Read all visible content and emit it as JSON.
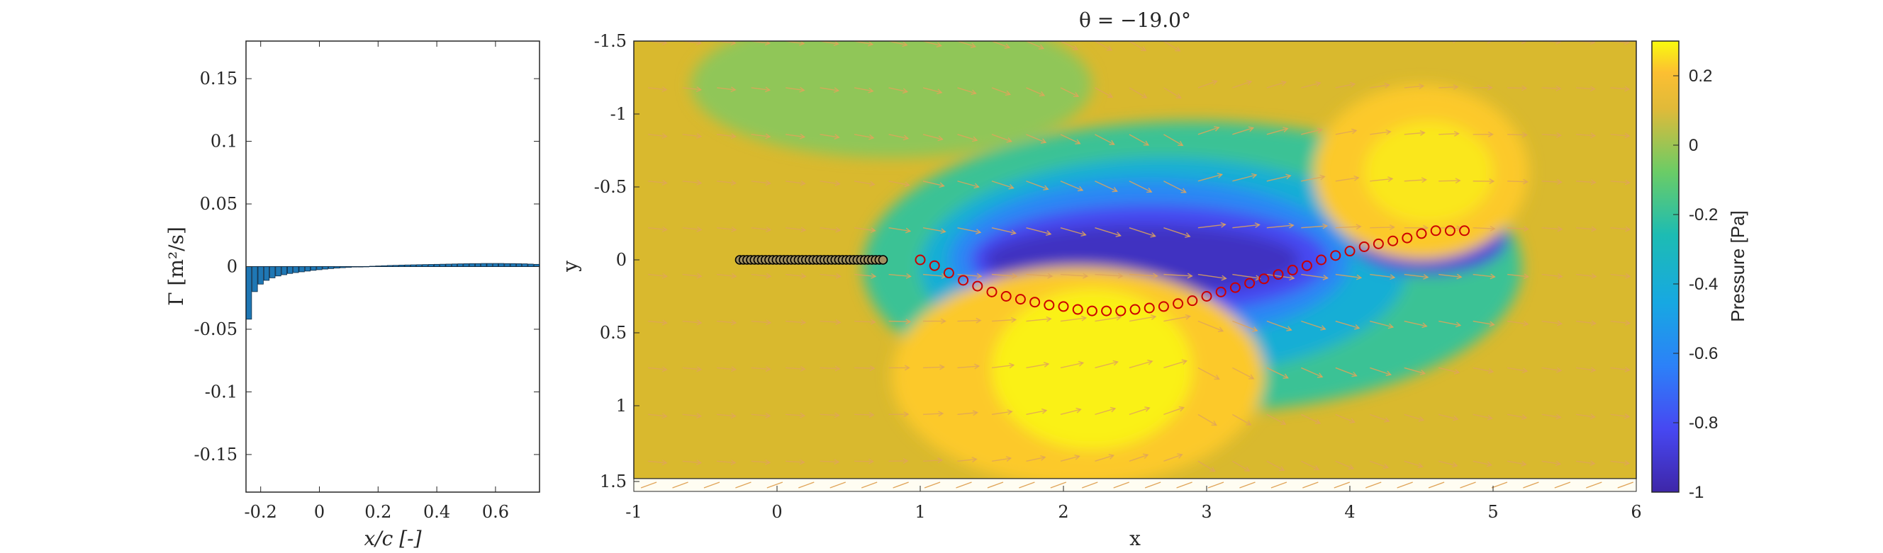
{
  "chart_data": [
    {
      "type": "bar",
      "xlabel": "x/c [-]",
      "ylabel": "Γ [m²/s]",
      "xlim": [
        -0.25,
        0.75
      ],
      "ylim": [
        -0.18,
        0.18
      ],
      "xticks": [
        "-0.2",
        "0",
        "0.2",
        "0.4",
        "0.6"
      ],
      "yticks": [
        "0.15",
        "0.1",
        "0.05",
        "0",
        "-0.05",
        "-0.1",
        "-0.15"
      ],
      "bar_color": "#1f77b4",
      "x": [
        -0.24,
        -0.22,
        -0.2,
        -0.18,
        -0.16,
        -0.14,
        -0.12,
        -0.1,
        -0.08,
        -0.06,
        -0.04,
        -0.02,
        0.0,
        0.02,
        0.04,
        0.06,
        0.08,
        0.1,
        0.12,
        0.14,
        0.16,
        0.18,
        0.2,
        0.22,
        0.24,
        0.26,
        0.28,
        0.3,
        0.32,
        0.34,
        0.36,
        0.38,
        0.4,
        0.42,
        0.44,
        0.46,
        0.48,
        0.5,
        0.52,
        0.54,
        0.56,
        0.58,
        0.6,
        0.62,
        0.64,
        0.66,
        0.68,
        0.7,
        0.72,
        0.74
      ],
      "values": [
        -0.042,
        -0.02,
        -0.014,
        -0.011,
        -0.009,
        -0.0075,
        -0.0065,
        -0.0055,
        -0.0048,
        -0.0042,
        -0.0036,
        -0.003,
        -0.0025,
        -0.002,
        -0.0016,
        -0.0012,
        -0.0009,
        -0.0006,
        -0.0003,
        -0.0001,
        0.0001,
        0.0003,
        0.0005,
        0.0007,
        0.0009,
        0.001,
        0.0012,
        0.0013,
        0.0014,
        0.0015,
        0.0016,
        0.0017,
        0.0018,
        0.0019,
        0.002,
        0.0021,
        0.0022,
        0.0023,
        0.0024,
        0.0024,
        0.0025,
        0.0025,
        0.0025,
        0.0025,
        0.0024,
        0.0024,
        0.0023,
        0.0022,
        0.002,
        0.0018
      ]
    },
    {
      "type": "heatmap",
      "title": "θ = −19.0°",
      "xlabel": "x",
      "ylabel": "y",
      "xlim": [
        -1,
        6
      ],
      "ylim": [
        -1.5,
        1.5
      ],
      "y_reversed": true,
      "xticks": [
        "-1",
        "0",
        "1",
        "2",
        "3",
        "4",
        "5",
        "6"
      ],
      "yticks": [
        "-1.5",
        "-1",
        "-0.5",
        "0",
        "0.5",
        "1",
        "1.5"
      ],
      "colorbar": {
        "label": "Pressure [Pa]",
        "range": [
          -1.0,
          0.3
        ],
        "ticks": [
          "0.2",
          "0",
          "-0.2",
          "-0.4",
          "-0.6",
          "-0.8",
          "-1"
        ],
        "colormap": "parula"
      },
      "pressure_regions": [
        {
          "shape": "ellipse",
          "center": [
            2.9,
            0.05
          ],
          "radii": [
            2.3,
            1.0
          ],
          "level": -0.25
        },
        {
          "shape": "ellipse",
          "center": [
            2.7,
            0.05
          ],
          "radii": [
            1.7,
            0.75
          ],
          "level": -0.45
        },
        {
          "shape": "ellipse",
          "center": [
            2.6,
            0.0
          ],
          "radii": [
            1.4,
            0.55
          ],
          "level": -0.65
        },
        {
          "shape": "ellipse",
          "center": [
            2.6,
            0.0
          ],
          "radii": [
            1.25,
            0.38
          ],
          "level": -0.85
        },
        {
          "shape": "ellipse",
          "center": [
            2.55,
            0.0
          ],
          "radii": [
            1.1,
            0.24
          ],
          "level": -0.95
        },
        {
          "shape": "ellipse",
          "center": [
            4.55,
            -0.15
          ],
          "radii": [
            0.55,
            0.25
          ],
          "level": -0.9
        },
        {
          "shape": "ellipse",
          "center": [
            4.5,
            -0.6
          ],
          "radii": [
            0.75,
            0.6
          ],
          "level": 0.2
        },
        {
          "shape": "ellipse",
          "center": [
            4.55,
            -0.6
          ],
          "radii": [
            0.45,
            0.35
          ],
          "level": 0.26
        },
        {
          "shape": "ellipse",
          "center": [
            2.1,
            0.8
          ],
          "radii": [
            1.3,
            0.75
          ],
          "level": 0.2
        },
        {
          "shape": "ellipse",
          "center": [
            2.2,
            0.75
          ],
          "radii": [
            0.7,
            0.55
          ],
          "level": 0.28
        },
        {
          "shape": "ellipse",
          "center": [
            0.8,
            -1.2
          ],
          "radii": [
            1.4,
            0.5
          ],
          "level": -0.08
        }
      ],
      "plate_markers": {
        "color": "#000000",
        "x_range": [
          -0.26,
          0.74
        ],
        "y": 0.0,
        "count": 40
      },
      "wake_markers": {
        "color": "#cc0000",
        "x": [
          1.0,
          1.1,
          1.2,
          1.3,
          1.4,
          1.5,
          1.6,
          1.7,
          1.8,
          1.9,
          2.0,
          2.1,
          2.2,
          2.3,
          2.4,
          2.5,
          2.6,
          2.7,
          2.8,
          2.9,
          3.0,
          3.1,
          3.2,
          3.3,
          3.4,
          3.5,
          3.6,
          3.7,
          3.8,
          3.9,
          4.0,
          4.1,
          4.2,
          4.3,
          4.4,
          4.5,
          4.6,
          4.7,
          4.8
        ],
        "y": [
          0.0,
          0.04,
          0.09,
          0.14,
          0.18,
          0.22,
          0.25,
          0.27,
          0.29,
          0.31,
          0.32,
          0.34,
          0.35,
          0.35,
          0.35,
          0.34,
          0.33,
          0.32,
          0.3,
          0.28,
          0.25,
          0.22,
          0.19,
          0.16,
          0.13,
          0.1,
          0.07,
          0.04,
          0.0,
          -0.03,
          -0.06,
          -0.09,
          -0.11,
          -0.13,
          -0.15,
          -0.18,
          -0.2,
          -0.2,
          -0.2
        ]
      },
      "quiver": {
        "color": "#e0a55a"
      }
    }
  ]
}
